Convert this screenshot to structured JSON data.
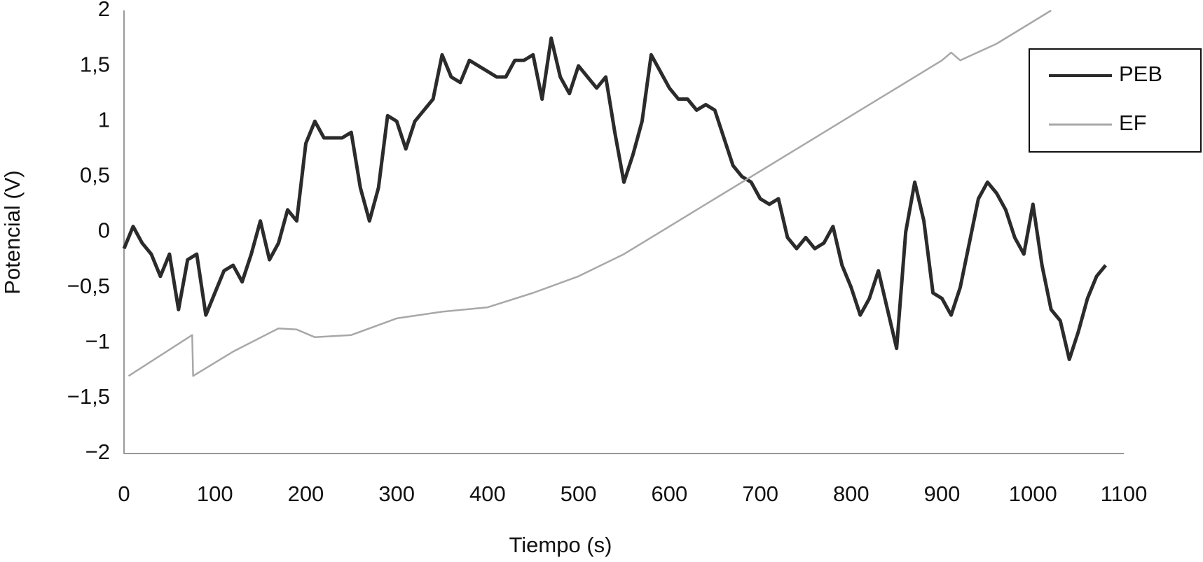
{
  "chart_data": {
    "type": "line",
    "x_label": "Tiempo (s)",
    "y_label": "Potencial (V)",
    "xlim": [
      0,
      1100
    ],
    "xticks": [
      0,
      100,
      200,
      300,
      400,
      500,
      600,
      700,
      800,
      900,
      1000,
      1100
    ],
    "ylim": [
      -2,
      2
    ],
    "yticks": [
      {
        "value": -2,
        "label": "−2"
      },
      {
        "value": -1.5,
        "label": "−1,5"
      },
      {
        "value": -1,
        "label": "−1"
      },
      {
        "value": -0.5,
        "label": "−0,5"
      },
      0,
      {
        "value": 0.5,
        "label": "0,5"
      },
      1,
      {
        "value": 1.5,
        "label": "1,5"
      },
      2
    ],
    "grid": false,
    "legend": "upper right",
    "series": [
      {
        "name": "PEB",
        "color": "#2b2b2b",
        "x": [
          0,
          10,
          20,
          30,
          40,
          50,
          60,
          70,
          80,
          90,
          100,
          110,
          120,
          130,
          140,
          150,
          160,
          170,
          180,
          190,
          200,
          210,
          220,
          230,
          240,
          250,
          260,
          270,
          280,
          290,
          300,
          310,
          320,
          330,
          340,
          350,
          360,
          370,
          380,
          390,
          400,
          410,
          420,
          430,
          440,
          450,
          460,
          470,
          480,
          490,
          500,
          510,
          520,
          530,
          540,
          550,
          560,
          570,
          580,
          590,
          600,
          610,
          620,
          630,
          640,
          650,
          660,
          670,
          680,
          690,
          700,
          710,
          720,
          730,
          740,
          750,
          760,
          770,
          780,
          790,
          800,
          810,
          820,
          830,
          840,
          850,
          860,
          870,
          880,
          890,
          900,
          910,
          920,
          930,
          940,
          950,
          960,
          970,
          980,
          990,
          1000,
          1010,
          1020,
          1030,
          1040,
          1050,
          1060,
          1070,
          1080
        ],
        "values": [
          -0.15,
          0.05,
          -0.1,
          -0.2,
          -0.4,
          -0.2,
          -0.7,
          -0.25,
          -0.2,
          -0.75,
          -0.55,
          -0.35,
          -0.3,
          -0.45,
          -0.2,
          0.1,
          -0.25,
          -0.1,
          0.2,
          0.1,
          0.8,
          1.0,
          0.85,
          0.85,
          0.85,
          0.9,
          0.4,
          0.1,
          0.4,
          1.05,
          1.0,
          0.75,
          1.0,
          1.1,
          1.2,
          1.6,
          1.4,
          1.35,
          1.55,
          1.5,
          1.45,
          1.4,
          1.4,
          1.55,
          1.55,
          1.6,
          1.2,
          1.75,
          1.4,
          1.25,
          1.5,
          1.4,
          1.3,
          1.4,
          0.9,
          0.45,
          0.7,
          1.0,
          1.6,
          1.45,
          1.3,
          1.2,
          1.2,
          1.1,
          1.15,
          1.1,
          0.85,
          0.6,
          0.5,
          0.45,
          0.3,
          0.25,
          0.3,
          -0.05,
          -0.15,
          -0.05,
          -0.15,
          -0.1,
          0.05,
          -0.3,
          -0.5,
          -0.75,
          -0.6,
          -0.35,
          -0.7,
          -1.05,
          0.0,
          0.45,
          0.1,
          -0.55,
          -0.6,
          -0.75,
          -0.5,
          -0.1,
          0.3,
          0.45,
          0.35,
          0.2,
          -0.05,
          -0.2,
          0.25,
          -0.3,
          -0.7,
          -0.8,
          -1.15,
          -0.9,
          -0.6,
          -0.4,
          -0.3
        ]
      },
      {
        "name": "EF",
        "color": "#a8a8a8",
        "x": [
          5,
          75,
          76,
          120,
          170,
          190,
          210,
          250,
          300,
          350,
          400,
          450,
          500,
          550,
          600,
          650,
          700,
          750,
          800,
          850,
          900,
          910,
          920,
          960,
          1020
        ],
        "values": [
          -1.3,
          -0.93,
          -1.3,
          -1.08,
          -0.87,
          -0.88,
          -0.95,
          -0.93,
          -0.78,
          -0.72,
          -0.68,
          -0.55,
          -0.4,
          -0.2,
          0.05,
          0.3,
          0.55,
          0.8,
          1.05,
          1.3,
          1.55,
          1.62,
          1.55,
          1.7,
          2.0
        ]
      }
    ]
  }
}
